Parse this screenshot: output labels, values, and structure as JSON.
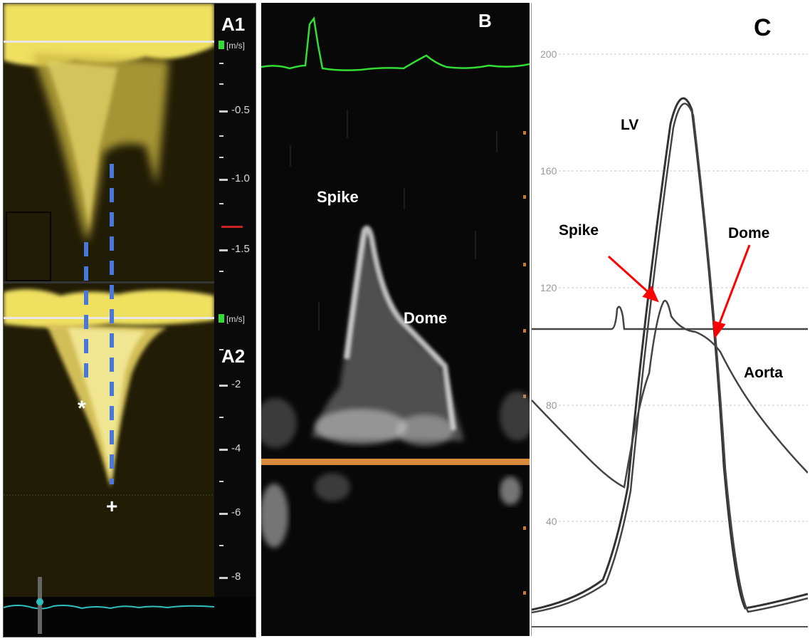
{
  "panelA": {
    "top_label": "A1",
    "bottom_label": "A2",
    "unit_top": "[m/s]",
    "unit_bottom": "[m/s]",
    "ticks_top": [
      "-0.5",
      "-1.0",
      "-1.5"
    ],
    "ticks_bottom": [
      "-2",
      "-4",
      "-6",
      "-8"
    ],
    "star_mark": "*",
    "plus_mark": "+"
  },
  "panelB": {
    "label": "B",
    "spike": "Spike",
    "dome": "Dome"
  },
  "panelC": {
    "label": "C",
    "y_ticks": [
      "200",
      "160",
      "120",
      "80",
      "40"
    ],
    "lv": "LV",
    "spike": "Spike",
    "dome": "Dome",
    "aorta": "Aorta",
    "arrow_color": "#ff0000"
  },
  "colors": {
    "doppler_yellow": "#f0e060",
    "ecg_green": "#33dd33",
    "baseline_orange": "#d98a3a",
    "dash_blue": "#4a78d8",
    "ecg_cyan": "#30c0c0"
  }
}
